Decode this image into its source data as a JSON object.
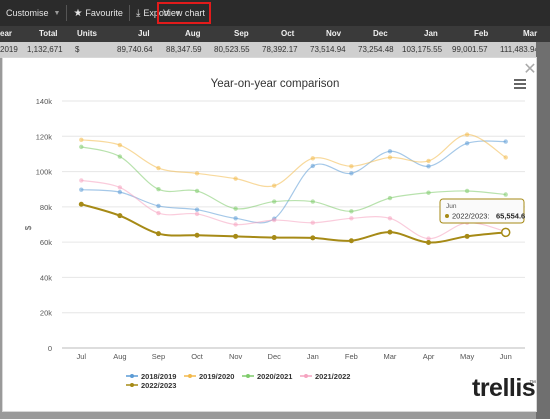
{
  "toolbar": {
    "customise": "Customise",
    "favourite": "Favourite",
    "export": "Export",
    "view_chart": "View chart",
    "favourite_icon": "star-icon",
    "export_icon": "download-icon"
  },
  "grid": {
    "headers": [
      "ear",
      "Total",
      "Units",
      "Jul",
      "Aug",
      "Sep",
      "Oct",
      "Nov",
      "Dec",
      "Jan",
      "Feb",
      "Mar"
    ],
    "row": [
      "2019",
      "1,132,671",
      "$",
      "89,740.64",
      "88,347.59",
      "80,523.55",
      "78,392.17",
      "73,514.94",
      "73,254.48",
      "103,175.55",
      "99,001.57",
      "111,483.94"
    ]
  },
  "chart_data": {
    "type": "line",
    "title": "Year-on-year comparison",
    "categories": [
      "Jul",
      "Aug",
      "Sep",
      "Oct",
      "Nov",
      "Dec",
      "Jan",
      "Feb",
      "Mar",
      "Apr",
      "May",
      "Jun"
    ],
    "ylabel": "$",
    "ylim": [
      0,
      140000
    ],
    "yticks": [
      "0",
      "20k",
      "40k",
      "60k",
      "80k",
      "100k",
      "120k",
      "140k"
    ],
    "grid": true,
    "legend": "bottom",
    "series": [
      {
        "name": "2018/2019",
        "color": "#5b9bd5",
        "values": [
          89740.64,
          88347.59,
          80523.55,
          78392.17,
          73514.94,
          73254.48,
          103175.55,
          99001.57,
          111483.94,
          103000,
          116000,
          117000
        ]
      },
      {
        "name": "2019/2020",
        "color": "#f2b94b",
        "values": [
          118000,
          115000,
          102000,
          99000,
          96000,
          92000,
          107500,
          103000,
          108000,
          106000,
          121000,
          108000
        ]
      },
      {
        "name": "2020/2021",
        "color": "#7ecb6a",
        "values": [
          114000,
          108500,
          90000,
          89000,
          79000,
          83000,
          83000,
          77500,
          85000,
          88000,
          89000,
          87000
        ]
      },
      {
        "name": "2021/2022",
        "color": "#f5a3c0",
        "values": [
          95000,
          91000,
          76500,
          76000,
          70000,
          72500,
          71000,
          73500,
          73500,
          62000,
          71000,
          66000
        ]
      },
      {
        "name": "2022/2023",
        "color": "#a68a16",
        "values": [
          81500,
          75000,
          64800,
          63900,
          63300,
          62600,
          62400,
          60800,
          65700,
          59800,
          63300,
          65554.6
        ]
      }
    ],
    "tooltip": {
      "category": "Jun",
      "series": "2022/2023",
      "value_label": "2022/2023:",
      "value": "65,554.6"
    }
  },
  "branding": {
    "name": "trellis",
    "mark": "™"
  },
  "icons": {
    "close": "close-icon",
    "menu": "hamburger-menu-icon"
  }
}
